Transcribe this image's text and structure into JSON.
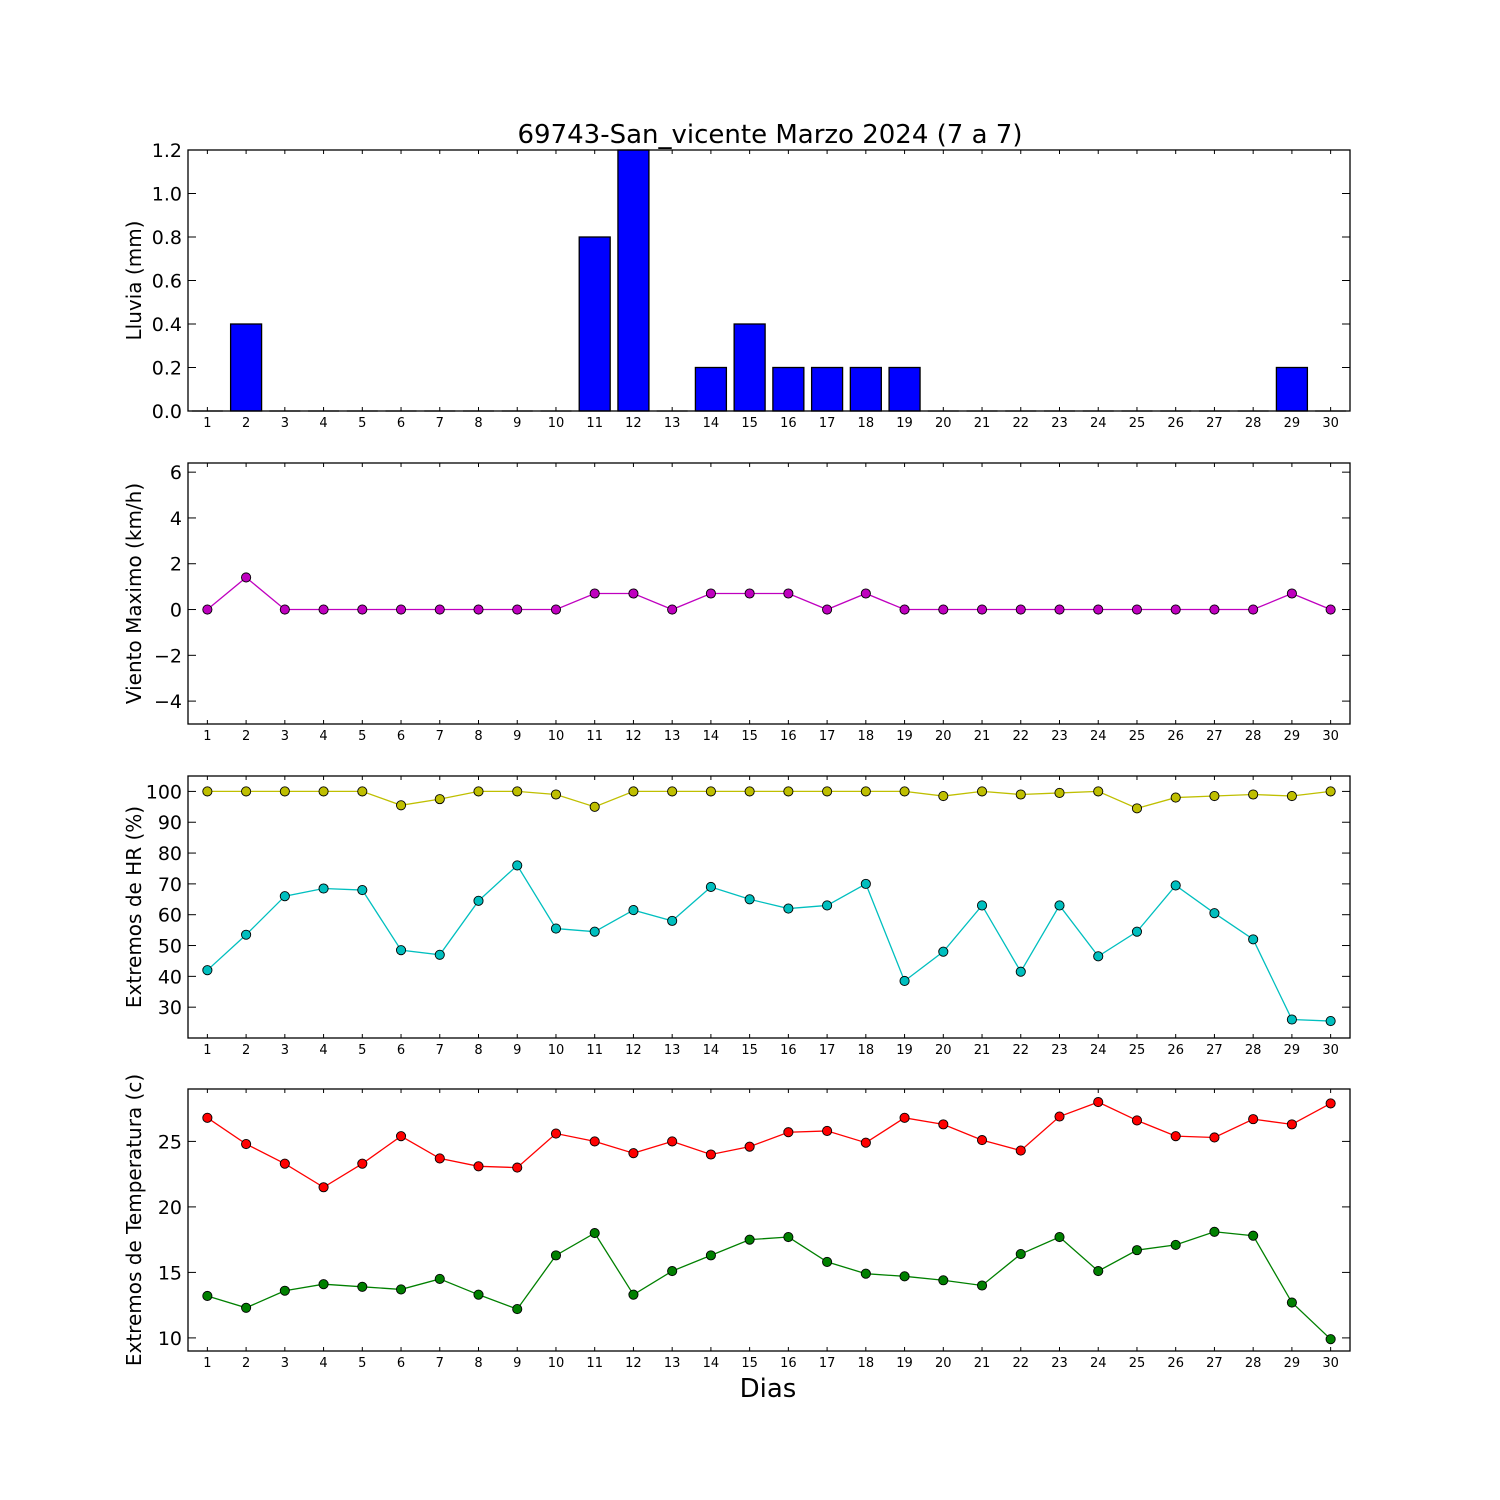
{
  "title": "69743-San_vicente Marzo 2024  (7 a 7)",
  "xlabel": "Dias",
  "colors": {
    "rain_bar": "#0000ff",
    "wind": "#bf00bf",
    "hr_max": "#bfbf00",
    "hr_min": "#00bfbf",
    "temp_max": "#ff0000",
    "temp_min": "#008000"
  },
  "chart_data": [
    {
      "type": "bar",
      "ylabel": "Lluvia (mm)",
      "x": [
        1,
        2,
        3,
        4,
        5,
        6,
        7,
        8,
        9,
        10,
        11,
        12,
        13,
        14,
        15,
        16,
        17,
        18,
        19,
        20,
        21,
        22,
        23,
        24,
        25,
        26,
        27,
        28,
        29,
        30
      ],
      "ylim": [
        0,
        1.2
      ],
      "yticks": [
        0.0,
        0.2,
        0.4,
        0.6,
        0.8,
        1.0,
        1.2
      ],
      "ytick_labels": [
        "0.0",
        "0.2",
        "0.4",
        "0.6",
        "0.8",
        "1.0",
        "1.2"
      ],
      "series": [
        {
          "values": [
            0,
            0.4,
            0,
            0,
            0,
            0,
            0,
            0,
            0,
            0,
            0.8,
            1.2,
            0,
            0.2,
            0.4,
            0.2,
            0.2,
            0.2,
            0.2,
            0,
            0,
            0,
            0,
            0,
            0,
            0,
            0,
            0,
            0.2,
            0
          ]
        }
      ]
    },
    {
      "type": "line",
      "ylabel": "Viento Maximo (km/h)",
      "x": [
        1,
        2,
        3,
        4,
        5,
        6,
        7,
        8,
        9,
        10,
        11,
        12,
        13,
        14,
        15,
        16,
        17,
        18,
        19,
        20,
        21,
        22,
        23,
        24,
        25,
        26,
        27,
        28,
        29,
        30
      ],
      "ylim": [
        -5,
        6.4
      ],
      "yticks": [
        -4,
        -2,
        0,
        2,
        4,
        6
      ],
      "ytick_labels": [
        "−4",
        "−2",
        "0",
        "2",
        "4",
        "6"
      ],
      "series": [
        {
          "values": [
            0,
            1.4,
            0,
            0,
            0,
            0,
            0,
            0,
            0,
            0,
            0.7,
            0.7,
            0,
            0.7,
            0.7,
            0.7,
            0,
            0.7,
            0,
            0,
            0,
            0,
            0,
            0,
            0,
            0,
            0,
            0,
            0.7,
            0
          ]
        }
      ]
    },
    {
      "type": "line",
      "ylabel": "Extremos de HR (%)",
      "x": [
        1,
        2,
        3,
        4,
        5,
        6,
        7,
        8,
        9,
        10,
        11,
        12,
        13,
        14,
        15,
        16,
        17,
        18,
        19,
        20,
        21,
        22,
        23,
        24,
        25,
        26,
        27,
        28,
        29,
        30
      ],
      "ylim": [
        20,
        105
      ],
      "yticks": [
        30,
        40,
        50,
        60,
        70,
        80,
        90,
        100
      ],
      "ytick_labels": [
        "30",
        "40",
        "50",
        "60",
        "70",
        "80",
        "90",
        "100"
      ],
      "series": [
        {
          "values": [
            100,
            100,
            100,
            100,
            100,
            95.5,
            97.5,
            100,
            100,
            99,
            95,
            100,
            100,
            100,
            100,
            100,
            100,
            100,
            100,
            98.5,
            100,
            99,
            99.5,
            100,
            94.5,
            98,
            98.5,
            99,
            98.5,
            100
          ]
        },
        {
          "values": [
            42,
            53.5,
            66,
            68.5,
            68,
            48.5,
            47,
            64.5,
            76,
            55.5,
            54.5,
            61.5,
            58,
            69,
            65,
            62,
            63,
            70,
            38.5,
            48,
            63,
            41.5,
            63,
            46.5,
            54.5,
            69.5,
            60.5,
            52,
            26,
            25.5
          ]
        }
      ]
    },
    {
      "type": "line",
      "ylabel": "Extremos de Temperatura (c)",
      "x": [
        1,
        2,
        3,
        4,
        5,
        6,
        7,
        8,
        9,
        10,
        11,
        12,
        13,
        14,
        15,
        16,
        17,
        18,
        19,
        20,
        21,
        22,
        23,
        24,
        25,
        26,
        27,
        28,
        29,
        30
      ],
      "ylim": [
        9,
        29
      ],
      "yticks": [
        10,
        15,
        20,
        25
      ],
      "ytick_labels": [
        "10",
        "15",
        "20",
        "25"
      ],
      "series": [
        {
          "values": [
            26.8,
            24.8,
            23.3,
            21.5,
            23.3,
            25.4,
            23.7,
            23.1,
            23.0,
            25.6,
            25.0,
            24.1,
            25.0,
            24.0,
            24.6,
            25.7,
            25.8,
            24.9,
            26.8,
            26.3,
            25.1,
            24.3,
            26.9,
            28.0,
            26.6,
            25.4,
            25.3,
            26.7,
            26.3,
            27.9
          ]
        },
        {
          "values": [
            13.2,
            12.3,
            13.6,
            14.1,
            13.9,
            13.7,
            14.5,
            13.3,
            12.2,
            16.3,
            18.0,
            13.3,
            15.1,
            16.3,
            17.5,
            17.7,
            15.8,
            14.9,
            14.7,
            14.4,
            14.0,
            16.4,
            17.7,
            15.1,
            16.7,
            17.1,
            18.1,
            17.8,
            12.7,
            9.9
          ]
        }
      ]
    }
  ]
}
